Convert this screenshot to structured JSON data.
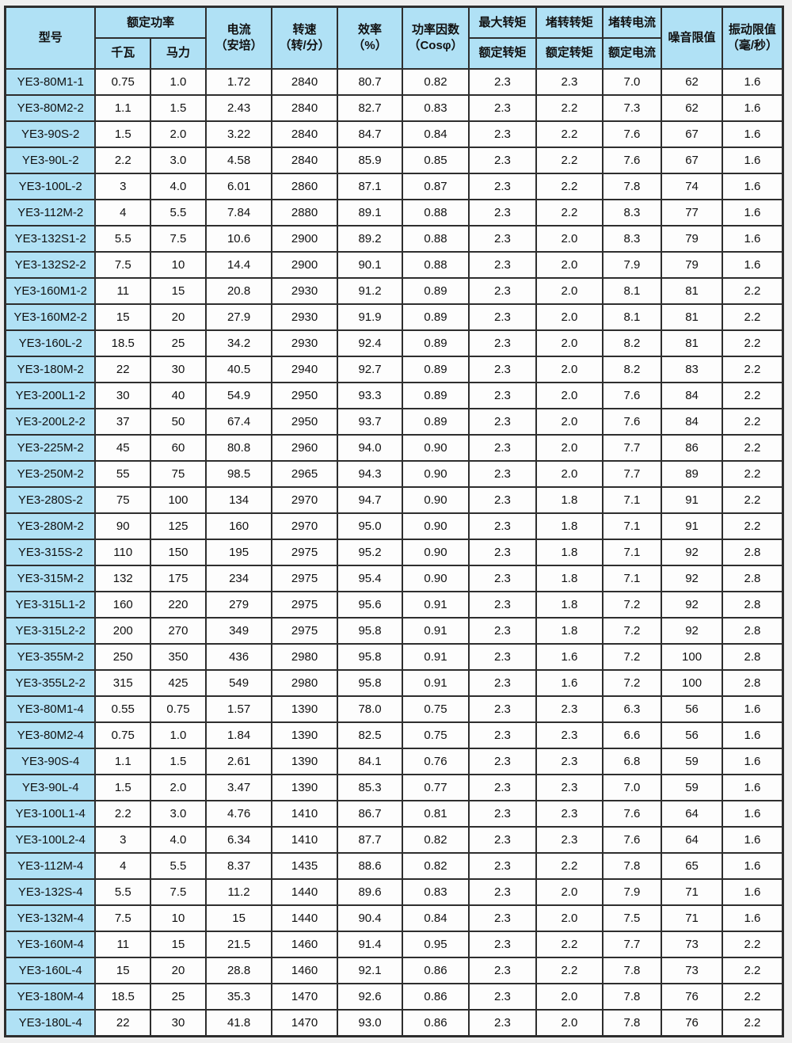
{
  "colors": {
    "header_bg": "#b0e1f5",
    "border": "#2e2e2e",
    "row_bg": "#fdfdfd"
  },
  "table": {
    "header": {
      "model": "型号",
      "rated_power": "额定功率",
      "kw": "千瓦",
      "hp": "马力",
      "current": "电流\n（安培）",
      "speed": "转速\n（转/分）",
      "efficiency": "效率\n（%）",
      "power_factor": "功率因数\n（Cosφ）",
      "max_torque_top": "最大转矩",
      "max_torque_bottom": "额定转矩",
      "locked_torque_top": "堵转转矩",
      "locked_torque_bottom": "额定转矩",
      "locked_current_top": "堵转电流",
      "locked_current_bottom": "额定电流",
      "noise": "噪音限值",
      "vibration": "振动限值\n（毫/秒）"
    },
    "rows": [
      [
        "YE3-80M1-1",
        "0.75",
        "1.0",
        "1.72",
        "2840",
        "80.7",
        "0.82",
        "2.3",
        "2.3",
        "7.0",
        "62",
        "1.6"
      ],
      [
        "YE3-80M2-2",
        "1.1",
        "1.5",
        "2.43",
        "2840",
        "82.7",
        "0.83",
        "2.3",
        "2.2",
        "7.3",
        "62",
        "1.6"
      ],
      [
        "YE3-90S-2",
        "1.5",
        "2.0",
        "3.22",
        "2840",
        "84.7",
        "0.84",
        "2.3",
        "2.2",
        "7.6",
        "67",
        "1.6"
      ],
      [
        "YE3-90L-2",
        "2.2",
        "3.0",
        "4.58",
        "2840",
        "85.9",
        "0.85",
        "2.3",
        "2.2",
        "7.6",
        "67",
        "1.6"
      ],
      [
        "YE3-100L-2",
        "3",
        "4.0",
        "6.01",
        "2860",
        "87.1",
        "0.87",
        "2.3",
        "2.2",
        "7.8",
        "74",
        "1.6"
      ],
      [
        "YE3-112M-2",
        "4",
        "5.5",
        "7.84",
        "2880",
        "89.1",
        "0.88",
        "2.3",
        "2.2",
        "8.3",
        "77",
        "1.6"
      ],
      [
        "YE3-132S1-2",
        "5.5",
        "7.5",
        "10.6",
        "2900",
        "89.2",
        "0.88",
        "2.3",
        "2.0",
        "8.3",
        "79",
        "1.6"
      ],
      [
        "YE3-132S2-2",
        "7.5",
        "10",
        "14.4",
        "2900",
        "90.1",
        "0.88",
        "2.3",
        "2.0",
        "7.9",
        "79",
        "1.6"
      ],
      [
        "YE3-160M1-2",
        "11",
        "15",
        "20.8",
        "2930",
        "91.2",
        "0.89",
        "2.3",
        "2.0",
        "8.1",
        "81",
        "2.2"
      ],
      [
        "YE3-160M2-2",
        "15",
        "20",
        "27.9",
        "2930",
        "91.9",
        "0.89",
        "2.3",
        "2.0",
        "8.1",
        "81",
        "2.2"
      ],
      [
        "YE3-160L-2",
        "18.5",
        "25",
        "34.2",
        "2930",
        "92.4",
        "0.89",
        "2.3",
        "2.0",
        "8.2",
        "81",
        "2.2"
      ],
      [
        "YE3-180M-2",
        "22",
        "30",
        "40.5",
        "2940",
        "92.7",
        "0.89",
        "2.3",
        "2.0",
        "8.2",
        "83",
        "2.2"
      ],
      [
        "YE3-200L1-2",
        "30",
        "40",
        "54.9",
        "2950",
        "93.3",
        "0.89",
        "2.3",
        "2.0",
        "7.6",
        "84",
        "2.2"
      ],
      [
        "YE3-200L2-2",
        "37",
        "50",
        "67.4",
        "2950",
        "93.7",
        "0.89",
        "2.3",
        "2.0",
        "7.6",
        "84",
        "2.2"
      ],
      [
        "YE3-225M-2",
        "45",
        "60",
        "80.8",
        "2960",
        "94.0",
        "0.90",
        "2.3",
        "2.0",
        "7.7",
        "86",
        "2.2"
      ],
      [
        "YE3-250M-2",
        "55",
        "75",
        "98.5",
        "2965",
        "94.3",
        "0.90",
        "2.3",
        "2.0",
        "7.7",
        "89",
        "2.2"
      ],
      [
        "YE3-280S-2",
        "75",
        "100",
        "134",
        "2970",
        "94.7",
        "0.90",
        "2.3",
        "1.8",
        "7.1",
        "91",
        "2.2"
      ],
      [
        "YE3-280M-2",
        "90",
        "125",
        "160",
        "2970",
        "95.0",
        "0.90",
        "2.3",
        "1.8",
        "7.1",
        "91",
        "2.2"
      ],
      [
        "YE3-315S-2",
        "110",
        "150",
        "195",
        "2975",
        "95.2",
        "0.90",
        "2.3",
        "1.8",
        "7.1",
        "92",
        "2.8"
      ],
      [
        "YE3-315M-2",
        "132",
        "175",
        "234",
        "2975",
        "95.4",
        "0.90",
        "2.3",
        "1.8",
        "7.1",
        "92",
        "2.8"
      ],
      [
        "YE3-315L1-2",
        "160",
        "220",
        "279",
        "2975",
        "95.6",
        "0.91",
        "2.3",
        "1.8",
        "7.2",
        "92",
        "2.8"
      ],
      [
        "YE3-315L2-2",
        "200",
        "270",
        "349",
        "2975",
        "95.8",
        "0.91",
        "2.3",
        "1.8",
        "7.2",
        "92",
        "2.8"
      ],
      [
        "YE3-355M-2",
        "250",
        "350",
        "436",
        "2980",
        "95.8",
        "0.91",
        "2.3",
        "1.6",
        "7.2",
        "100",
        "2.8"
      ],
      [
        "YE3-355L2-2",
        "315",
        "425",
        "549",
        "2980",
        "95.8",
        "0.91",
        "2.3",
        "1.6",
        "7.2",
        "100",
        "2.8"
      ],
      [
        "YE3-80M1-4",
        "0.55",
        "0.75",
        "1.57",
        "1390",
        "78.0",
        "0.75",
        "2.3",
        "2.3",
        "6.3",
        "56",
        "1.6"
      ],
      [
        "YE3-80M2-4",
        "0.75",
        "1.0",
        "1.84",
        "1390",
        "82.5",
        "0.75",
        "2.3",
        "2.3",
        "6.6",
        "56",
        "1.6"
      ],
      [
        "YE3-90S-4",
        "1.1",
        "1.5",
        "2.61",
        "1390",
        "84.1",
        "0.76",
        "2.3",
        "2.3",
        "6.8",
        "59",
        "1.6"
      ],
      [
        "YE3-90L-4",
        "1.5",
        "2.0",
        "3.47",
        "1390",
        "85.3",
        "0.77",
        "2.3",
        "2.3",
        "7.0",
        "59",
        "1.6"
      ],
      [
        "YE3-100L1-4",
        "2.2",
        "3.0",
        "4.76",
        "1410",
        "86.7",
        "0.81",
        "2.3",
        "2.3",
        "7.6",
        "64",
        "1.6"
      ],
      [
        "YE3-100L2-4",
        "3",
        "4.0",
        "6.34",
        "1410",
        "87.7",
        "0.82",
        "2.3",
        "2.3",
        "7.6",
        "64",
        "1.6"
      ],
      [
        "YE3-112M-4",
        "4",
        "5.5",
        "8.37",
        "1435",
        "88.6",
        "0.82",
        "2.3",
        "2.2",
        "7.8",
        "65",
        "1.6"
      ],
      [
        "YE3-132S-4",
        "5.5",
        "7.5",
        "11.2",
        "1440",
        "89.6",
        "0.83",
        "2.3",
        "2.0",
        "7.9",
        "71",
        "1.6"
      ],
      [
        "YE3-132M-4",
        "7.5",
        "10",
        "15",
        "1440",
        "90.4",
        "0.84",
        "2.3",
        "2.0",
        "7.5",
        "71",
        "1.6"
      ],
      [
        "YE3-160M-4",
        "11",
        "15",
        "21.5",
        "1460",
        "91.4",
        "0.95",
        "2.3",
        "2.2",
        "7.7",
        "73",
        "2.2"
      ],
      [
        "YE3-160L-4",
        "15",
        "20",
        "28.8",
        "1460",
        "92.1",
        "0.86",
        "2.3",
        "2.2",
        "7.8",
        "73",
        "2.2"
      ],
      [
        "YE3-180M-4",
        "18.5",
        "25",
        "35.3",
        "1470",
        "92.6",
        "0.86",
        "2.3",
        "2.0",
        "7.8",
        "76",
        "2.2"
      ],
      [
        "YE3-180L-4",
        "22",
        "30",
        "41.8",
        "1470",
        "93.0",
        "0.86",
        "2.3",
        "2.0",
        "7.8",
        "76",
        "2.2"
      ]
    ]
  }
}
